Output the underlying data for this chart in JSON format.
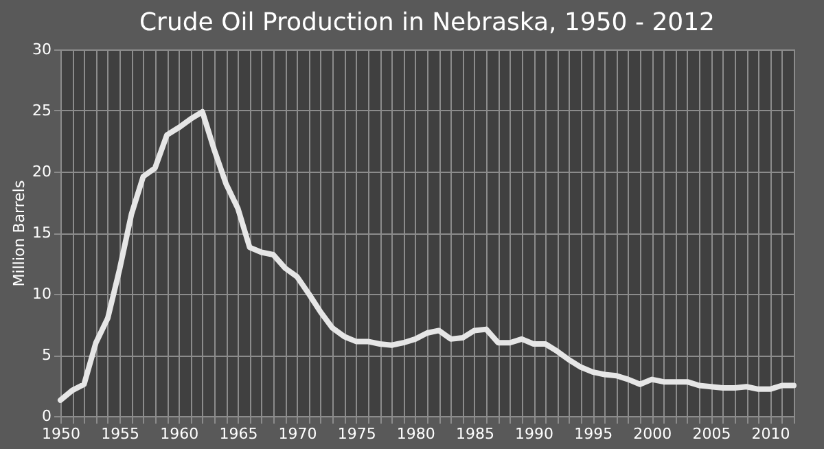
{
  "chart_data": {
    "type": "line",
    "title": "Crude Oil Production in Nebraska, 1950 - 2012",
    "ylabel": "Million Barrels",
    "x": [
      1950,
      1951,
      1952,
      1953,
      1954,
      1955,
      1956,
      1957,
      1958,
      1959,
      1960,
      1961,
      1962,
      1963,
      1964,
      1965,
      1966,
      1967,
      1968,
      1969,
      1970,
      1971,
      1972,
      1973,
      1974,
      1975,
      1976,
      1977,
      1978,
      1979,
      1980,
      1981,
      1982,
      1983,
      1984,
      1985,
      1986,
      1987,
      1988,
      1989,
      1990,
      1991,
      1992,
      1993,
      1994,
      1995,
      1996,
      1997,
      1998,
      1999,
      2000,
      2001,
      2002,
      2003,
      2004,
      2005,
      2006,
      2007,
      2008,
      2009,
      2010,
      2011,
      2012
    ],
    "series": [
      {
        "color": "#e6e6e6",
        "values": [
          1.3,
          2.1,
          2.6,
          6.0,
          8.0,
          12.0,
          16.5,
          19.6,
          20.3,
          23.0,
          23.6,
          24.3,
          24.9,
          21.8,
          19.0,
          17.0,
          13.8,
          13.4,
          13.2,
          12.1,
          11.4,
          10.0,
          8.5,
          7.2,
          6.5,
          6.1,
          6.1,
          5.9,
          5.8,
          6.0,
          6.3,
          6.8,
          7.0,
          6.3,
          6.4,
          7.0,
          7.1,
          6.0,
          6.0,
          6.3,
          5.9,
          5.9,
          5.3,
          4.6,
          4.0,
          3.6,
          3.4,
          3.3,
          3.0,
          2.6,
          3.0,
          2.8,
          2.8,
          2.8,
          2.5,
          2.4,
          2.3,
          2.3,
          2.4,
          2.2,
          2.2,
          2.5,
          2.5
        ]
      }
    ],
    "xlim": [
      1950,
      2012
    ],
    "xticks": [
      1950,
      {
        "value": 1951,
        "label": null
      },
      {
        "value": 1952,
        "label": null
      },
      {
        "value": 1953,
        "label": null
      },
      {
        "value": 1954,
        "label": null
      },
      1955,
      {
        "value": 1956,
        "label": null
      },
      {
        "value": 1957,
        "label": null
      },
      {
        "value": 1958,
        "label": null
      },
      {
        "value": 1959,
        "label": null
      },
      1960,
      {
        "value": 1961,
        "label": null
      },
      {
        "value": 1962,
        "label": null
      },
      {
        "value": 1963,
        "label": null
      },
      {
        "value": 1964,
        "label": null
      },
      1965,
      {
        "value": 1966,
        "label": null
      },
      {
        "value": 1967,
        "label": null
      },
      {
        "value": 1968,
        "label": null
      },
      {
        "value": 1969,
        "label": null
      },
      1970,
      {
        "value": 1971,
        "label": null
      },
      {
        "value": 1972,
        "label": null
      },
      {
        "value": 1973,
        "label": null
      },
      {
        "value": 1974,
        "label": null
      },
      1975,
      {
        "value": 1976,
        "label": null
      },
      {
        "value": 1977,
        "label": null
      },
      {
        "value": 1978,
        "label": null
      },
      {
        "value": 1979,
        "label": null
      },
      1980,
      {
        "value": 1981,
        "label": null
      },
      {
        "value": 1982,
        "label": null
      },
      {
        "value": 1983,
        "label": null
      },
      {
        "value": 1984,
        "label": null
      },
      1985,
      {
        "value": 1986,
        "label": null
      },
      {
        "value": 1987,
        "label": null
      },
      {
        "value": 1988,
        "label": null
      },
      {
        "value": 1989,
        "label": null
      },
      1990,
      {
        "value": 1991,
        "label": null
      },
      {
        "value": 1992,
        "label": null
      },
      {
        "value": 1993,
        "label": null
      },
      {
        "value": 1994,
        "label": null
      },
      1995,
      {
        "value": 1996,
        "label": null
      },
      {
        "value": 1997,
        "label": null
      },
      {
        "value": 1998,
        "label": null
      },
      {
        "value": 1999,
        "label": null
      },
      2000,
      {
        "value": 2001,
        "label": null
      },
      {
        "value": 2002,
        "label": null
      },
      {
        "value": 2003,
        "label": null
      },
      {
        "value": 2004,
        "label": null
      },
      2005,
      {
        "value": 2006,
        "label": null
      },
      {
        "value": 2007,
        "label": null
      },
      {
        "value": 2008,
        "label": null
      },
      {
        "value": 2009,
        "label": null
      },
      2010,
      {
        "value": 2011,
        "label": null
      },
      {
        "value": 2012,
        "label": null
      }
    ],
    "ylim": [
      0,
      30
    ],
    "yticks": [
      0,
      5,
      10,
      15,
      20,
      25,
      30
    ],
    "grid": true,
    "marker": "none",
    "line_style": "solid"
  }
}
